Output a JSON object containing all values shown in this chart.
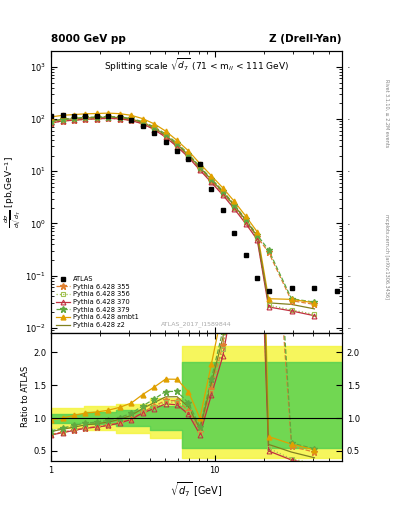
{
  "title_top_left": "8000 GeV pp",
  "title_top_right": "Z (Drell-Yan)",
  "title_main": "Splitting scale $\\sqrt{d_7}$ (71 < m$_{ll}$ < 111 GeV)",
  "watermark": "ATLAS_2017_I1589844",
  "right_label_top": "Rivet 3.1.10, ≥ 2.2M events",
  "right_label_bot": "mcplots.cern.ch [arXiv:1306.3436]",
  "atlas_x": [
    1.0,
    1.175,
    1.38,
    1.62,
    1.9,
    2.24,
    2.63,
    3.09,
    3.63,
    4.27,
    5.01,
    5.89,
    6.92,
    8.13,
    9.55,
    11.22,
    13.18,
    15.49,
    18.2,
    21.38,
    29.51,
    40.74,
    56.23
  ],
  "atlas_y": [
    113.0,
    118.0,
    117.0,
    117.0,
    117.0,
    116.0,
    109.0,
    96.0,
    75.0,
    55.0,
    37.0,
    24.5,
    17.5,
    14.0,
    4.5,
    1.8,
    0.65,
    0.25,
    0.09,
    0.05,
    0.058,
    0.058,
    0.05
  ],
  "p355_x": [
    1.0,
    1.175,
    1.38,
    1.62,
    1.9,
    2.24,
    2.63,
    3.09,
    3.63,
    4.27,
    5.01,
    5.89,
    6.92,
    8.13,
    9.55,
    11.22,
    13.18,
    15.49,
    18.2,
    21.38,
    29.51,
    40.74
  ],
  "p355_y": [
    85.0,
    93.0,
    96.0,
    100.0,
    102.0,
    104.0,
    102.0,
    95.0,
    82.0,
    65.0,
    47.0,
    31.0,
    19.5,
    11.0,
    6.5,
    3.8,
    2.1,
    1.1,
    0.55,
    0.28,
    0.033,
    0.028
  ],
  "p356_x": [
    1.0,
    1.175,
    1.38,
    1.62,
    1.9,
    2.24,
    2.63,
    3.09,
    3.63,
    4.27,
    5.01,
    5.89,
    6.92,
    8.13,
    9.55,
    11.22,
    13.18,
    15.49,
    18.2,
    21.38,
    29.51,
    40.74
  ],
  "p356_y": [
    84.0,
    92.0,
    95.0,
    99.0,
    101.0,
    103.0,
    101.0,
    94.0,
    81.0,
    64.0,
    46.0,
    30.5,
    19.0,
    10.8,
    6.3,
    3.7,
    2.0,
    1.05,
    0.52,
    0.027,
    0.022,
    0.018
  ],
  "p370_x": [
    1.0,
    1.175,
    1.38,
    1.62,
    1.9,
    2.24,
    2.63,
    3.09,
    3.63,
    4.27,
    5.01,
    5.89,
    6.92,
    8.13,
    9.55,
    11.22,
    13.18,
    15.49,
    18.2,
    21.38,
    29.51,
    40.74
  ],
  "p370_y": [
    84.0,
    92.0,
    95.0,
    99.0,
    101.0,
    103.0,
    101.0,
    94.0,
    81.0,
    63.0,
    45.0,
    29.5,
    18.5,
    10.5,
    6.1,
    3.5,
    1.9,
    0.99,
    0.49,
    0.025,
    0.021,
    0.017
  ],
  "p379_x": [
    1.0,
    1.175,
    1.38,
    1.62,
    1.9,
    2.24,
    2.63,
    3.09,
    3.63,
    4.27,
    5.01,
    5.89,
    6.92,
    8.13,
    9.55,
    11.22,
    13.18,
    15.49,
    18.2,
    21.38,
    29.51,
    40.74
  ],
  "p379_y": [
    91.0,
    100.0,
    104.0,
    108.0,
    110.0,
    112.0,
    110.0,
    103.0,
    89.0,
    71.0,
    52.0,
    34.5,
    21.5,
    12.2,
    7.2,
    4.2,
    2.3,
    1.2,
    0.6,
    0.31,
    0.036,
    0.031
  ],
  "pambt1_x": [
    1.0,
    1.175,
    1.38,
    1.62,
    1.9,
    2.24,
    2.63,
    3.09,
    3.63,
    4.27,
    5.01,
    5.89,
    6.92,
    8.13,
    9.55,
    11.22,
    13.18,
    15.49,
    18.2,
    21.38,
    29.51,
    40.74
  ],
  "pambt1_y": [
    110.0,
    118.0,
    122.0,
    126.0,
    128.0,
    130.0,
    127.0,
    118.0,
    102.0,
    81.0,
    59.0,
    39.0,
    24.5,
    14.0,
    8.2,
    4.8,
    2.65,
    1.38,
    0.69,
    0.036,
    0.035,
    0.03
  ],
  "pz2_x": [
    1.0,
    1.175,
    1.38,
    1.62,
    1.9,
    2.24,
    2.63,
    3.09,
    3.63,
    4.27,
    5.01,
    5.89,
    6.92,
    8.13,
    9.55,
    11.22,
    13.18,
    15.49,
    18.2,
    21.38,
    29.51,
    40.74
  ],
  "pz2_y": [
    90.0,
    98.0,
    101.0,
    105.0,
    107.0,
    109.0,
    107.0,
    100.0,
    86.0,
    68.0,
    49.0,
    32.5,
    20.5,
    11.7,
    6.9,
    4.0,
    2.2,
    1.15,
    0.57,
    0.03,
    0.028,
    0.023
  ],
  "color_355": "#e08030",
  "color_356": "#a0c050",
  "color_370": "#c03040",
  "color_379": "#60a840",
  "color_ambt1": "#e0a000",
  "color_z2": "#808020",
  "band_x_edges": [
    1.0,
    1.6,
    2.5,
    4.0,
    6.3,
    60.0
  ],
  "outer_hi": [
    1.15,
    1.18,
    1.22,
    1.3,
    2.1,
    2.1
  ],
  "outer_lo": [
    0.85,
    0.82,
    0.78,
    0.7,
    0.4,
    0.4
  ],
  "inner_hi": [
    1.07,
    1.09,
    1.12,
    1.18,
    1.85,
    1.85
  ],
  "inner_lo": [
    0.93,
    0.91,
    0.88,
    0.82,
    0.55,
    0.55
  ],
  "xlim": [
    1.0,
    60.0
  ],
  "ylim_main": [
    0.008,
    2000.0
  ],
  "ylim_ratio": [
    0.35,
    2.3
  ]
}
